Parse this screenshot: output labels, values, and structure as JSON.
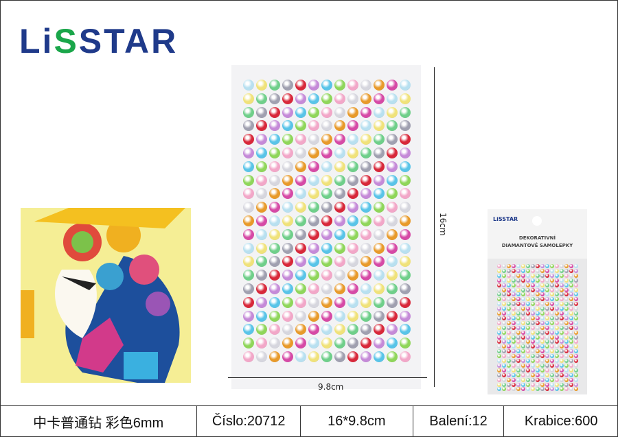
{
  "logo": {
    "part1": "Li",
    "part2": "S",
    "part3": "STAR"
  },
  "dimensions": {
    "height": "16cm",
    "width": "9.8cm"
  },
  "package": {
    "logo": "LiSSTAR",
    "line1": "DEKORATIVNÍ",
    "line2": "DIAMANTOVÉ SAMOLEPKY"
  },
  "table": {
    "name": "中卡普通钻  彩色6mm",
    "code": "Číslo:20712",
    "size": "16*9.8cm",
    "pack": "Balení:12",
    "box": "Krabice:600"
  },
  "colors": {
    "brand_blue": "#1f3a8a",
    "brand_green": "#1aa64a"
  }
}
